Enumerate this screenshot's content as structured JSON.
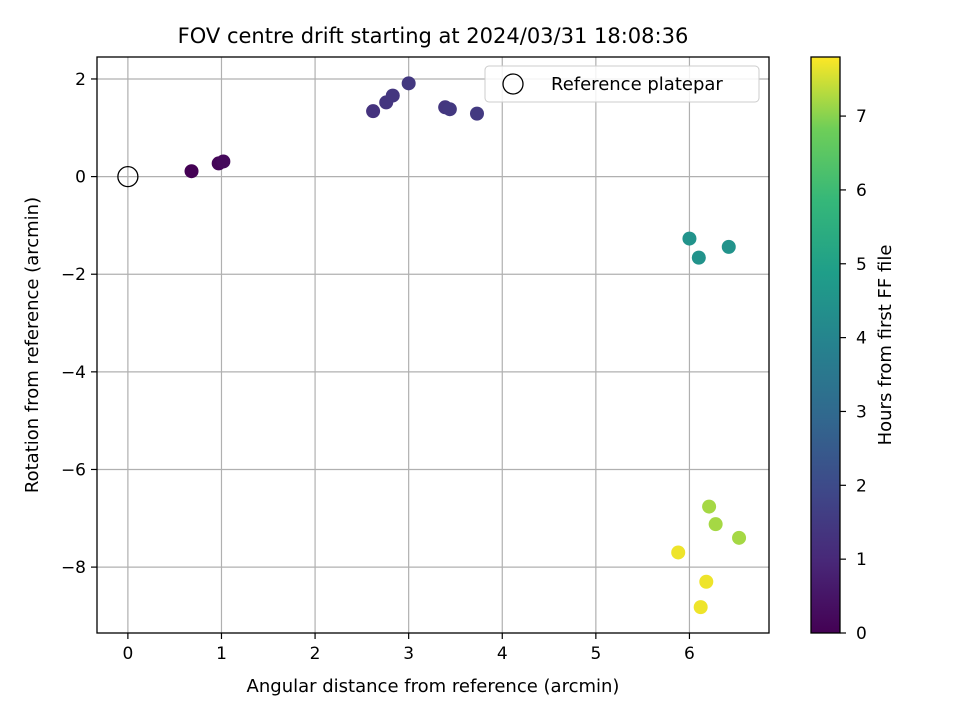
{
  "chart_data": {
    "type": "scatter",
    "title": "FOV centre drift starting at 2024/03/31 18:08:36",
    "xlabel": "Angular distance from reference (arcmin)",
    "ylabel": "Rotation from reference (arcmin)",
    "xlim": [
      -0.33,
      6.85
    ],
    "ylim": [
      -9.35,
      2.45
    ],
    "xticks": [
      0,
      1,
      2,
      3,
      4,
      5,
      6
    ],
    "yticks": [
      2,
      0,
      -2,
      -4,
      -6,
      -8
    ],
    "xtick_labels": [
      "0",
      "1",
      "2",
      "3",
      "4",
      "5",
      "6"
    ],
    "ytick_labels": [
      "2",
      "0",
      "−2",
      "−4",
      "−6",
      "−8"
    ],
    "grid": true,
    "legend": {
      "position": "top-right",
      "label": "Reference platepar"
    },
    "reference_point": {
      "x": 0,
      "y": 0
    },
    "colorbar": {
      "label": "Hours from first FF file",
      "range": [
        0,
        7.8
      ],
      "ticks": [
        0,
        1,
        2,
        3,
        4,
        5,
        6,
        7
      ],
      "colormap": "viridis"
    },
    "points": [
      {
        "x": 0.68,
        "y": 0.11,
        "hours": 0.0
      },
      {
        "x": 0.97,
        "y": 0.27,
        "hours": 0.1
      },
      {
        "x": 1.02,
        "y": 0.31,
        "hours": 0.2
      },
      {
        "x": 2.62,
        "y": 1.34,
        "hours": 1.3
      },
      {
        "x": 2.76,
        "y": 1.52,
        "hours": 1.35
      },
      {
        "x": 2.83,
        "y": 1.66,
        "hours": 1.4
      },
      {
        "x": 3.0,
        "y": 1.91,
        "hours": 1.45
      },
      {
        "x": 3.39,
        "y": 1.42,
        "hours": 1.4
      },
      {
        "x": 3.44,
        "y": 1.38,
        "hours": 1.45
      },
      {
        "x": 3.73,
        "y": 1.29,
        "hours": 1.5
      },
      {
        "x": 6.0,
        "y": -1.27,
        "hours": 4.5
      },
      {
        "x": 6.1,
        "y": -1.66,
        "hours": 4.5
      },
      {
        "x": 6.42,
        "y": -1.44,
        "hours": 4.5
      },
      {
        "x": 6.21,
        "y": -6.76,
        "hours": 7.2
      },
      {
        "x": 6.28,
        "y": -7.12,
        "hours": 7.2
      },
      {
        "x": 6.53,
        "y": -7.4,
        "hours": 7.2
      },
      {
        "x": 5.88,
        "y": -7.7,
        "hours": 7.7
      },
      {
        "x": 6.18,
        "y": -8.3,
        "hours": 7.7
      },
      {
        "x": 6.12,
        "y": -8.82,
        "hours": 7.7
      }
    ]
  }
}
